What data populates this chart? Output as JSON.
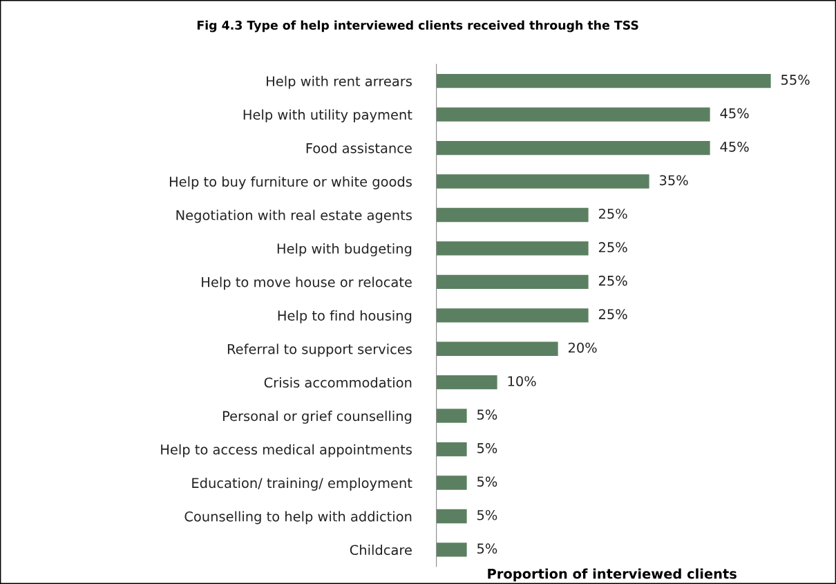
{
  "chart_data": {
    "type": "bar",
    "orientation": "horizontal",
    "title": "Fig 4.3 Type of help interviewed clients received through the TSS",
    "xlabel": "Proportion of interviewed clients",
    "categories": [
      "Help with rent arrears",
      "Help with utility payment",
      "Food assistance",
      "Help to buy furniture or white goods",
      "Negotiation with real estate agents",
      "Help with budgeting",
      "Help to move house or relocate",
      "Help to find housing",
      "Referral to support services",
      "Crisis accommodation",
      "Personal or grief counselling",
      "Help to access medical appointments",
      "Education/ training/ employment",
      "Counselling to help with addiction",
      "Childcare"
    ],
    "values": [
      55,
      45,
      45,
      35,
      25,
      25,
      25,
      25,
      20,
      10,
      5,
      5,
      5,
      5,
      5
    ],
    "value_labels": [
      "55%",
      "45%",
      "45%",
      "35%",
      "25%",
      "25%",
      "25%",
      "25%",
      "20%",
      "10%",
      "5%",
      "5%",
      "5%",
      "5%",
      "5%"
    ],
    "color": "#5b8061",
    "tick_labels": "y",
    "grid": false,
    "legend": false
  }
}
